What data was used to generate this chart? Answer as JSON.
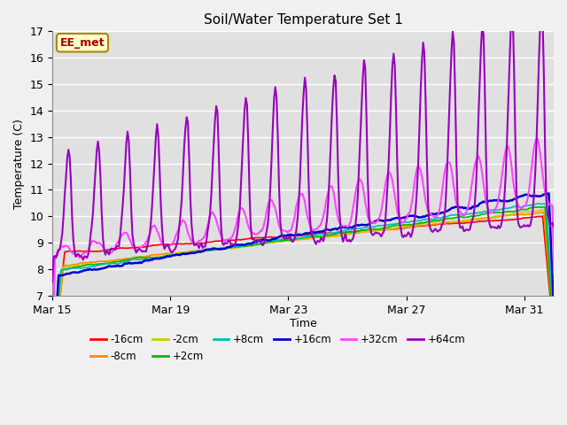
{
  "title": "Soil/Water Temperature Set 1",
  "xlabel": "Time",
  "ylabel": "Temperature (C)",
  "ylim": [
    7.0,
    17.0
  ],
  "yticks": [
    7.0,
    8.0,
    9.0,
    10.0,
    11.0,
    12.0,
    13.0,
    14.0,
    15.0,
    16.0,
    17.0
  ],
  "fig_bg_color": "#f0f0f0",
  "plot_bg_color": "#e0e0e0",
  "grid_color": "#ffffff",
  "series": [
    {
      "label": "-16cm",
      "color": "#ff0000",
      "lw": 1.2
    },
    {
      "label": "-8cm",
      "color": "#ff8800",
      "lw": 1.2
    },
    {
      "label": "-2cm",
      "color": "#cccc00",
      "lw": 1.2
    },
    {
      "label": "+2cm",
      "color": "#00bb00",
      "lw": 1.2
    },
    {
      "label": "+8cm",
      "color": "#00bbbb",
      "lw": 1.2
    },
    {
      "label": "+16cm",
      "color": "#0000cc",
      "lw": 1.8
    },
    {
      "label": "+32cm",
      "color": "#ff44ff",
      "lw": 1.5
    },
    {
      "label": "+64cm",
      "color": "#9900bb",
      "lw": 1.5
    }
  ],
  "xtick_labels": [
    "Mar 15",
    "Mar 19",
    "Mar 23",
    "Mar 27",
    "Mar 31"
  ],
  "xtick_positions": [
    0,
    4,
    8,
    12,
    16
  ],
  "n_days": 17,
  "annotation_label": "EE_met",
  "annotation_color": "#aa0000",
  "annotation_bg": "#ffffcc",
  "annotation_border": "#aa8800"
}
